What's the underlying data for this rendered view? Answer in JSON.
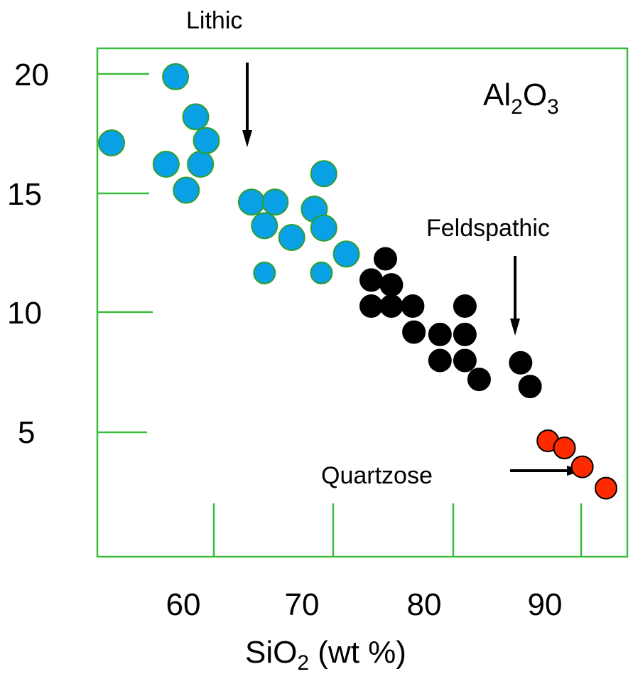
{
  "chart_data": {
    "type": "scatter",
    "title": "",
    "inset_label": {
      "main": "Al",
      "sub1": "2",
      "mid": "O",
      "sub2": "3"
    },
    "xlabel": {
      "main": "SiO",
      "sub": "2",
      "rest": " (wt %)"
    },
    "ylabel": "",
    "xlim": [
      51.3,
      96
    ],
    "ylim": [
      0,
      21.5
    ],
    "x_ticks": [
      "60",
      "70",
      "80",
      "90"
    ],
    "y_ticks": [
      "20",
      "15",
      "10",
      "5"
    ],
    "grid": false,
    "colors": {
      "frame": "#3dbb3d",
      "Lithic": "#0aa0e6",
      "Feldspathic": "#000000",
      "Quartzose": "#ff2a00"
    },
    "annotations": [
      {
        "text": "Lithic",
        "points_to": "Lithic"
      },
      {
        "text": "Feldspathic",
        "points_to": "Feldspathic"
      },
      {
        "text": "Quartzose",
        "points_to": "Quartzose"
      }
    ],
    "series": [
      {
        "name": "Lithic",
        "points": [
          [
            52.5,
            17.5
          ],
          [
            57.1,
            16.6
          ],
          [
            57.9,
            20.3
          ],
          [
            58.8,
            15.5
          ],
          [
            59.6,
            18.6
          ],
          [
            60.0,
            16.6
          ],
          [
            60.5,
            17.6
          ],
          [
            64.3,
            15.0
          ],
          [
            65.4,
            14.0
          ],
          [
            66.3,
            15.0
          ],
          [
            67.7,
            13.5
          ],
          [
            69.6,
            14.7
          ],
          [
            70.4,
            13.9
          ],
          [
            70.4,
            16.2
          ],
          [
            65.4,
            12.0
          ],
          [
            70.2,
            12.0
          ],
          [
            72.3,
            12.8
          ]
        ]
      },
      {
        "name": "Feldspathic",
        "points": [
          [
            74.4,
            11.7
          ],
          [
            74.4,
            10.6
          ],
          [
            75.6,
            12.6
          ],
          [
            76.1,
            11.5
          ],
          [
            76.1,
            10.6
          ],
          [
            77.9,
            10.6
          ],
          [
            78.0,
            9.5
          ],
          [
            80.2,
            9.4
          ],
          [
            80.2,
            8.3
          ],
          [
            82.3,
            10.6
          ],
          [
            82.3,
            9.4
          ],
          [
            82.3,
            8.3
          ],
          [
            83.5,
            7.5
          ],
          [
            87.0,
            8.2
          ],
          [
            87.8,
            7.2
          ]
        ]
      },
      {
        "name": "Quartzose",
        "points": [
          [
            89.3,
            4.9
          ],
          [
            90.7,
            4.6
          ],
          [
            92.2,
            3.8
          ],
          [
            94.2,
            2.9
          ]
        ]
      }
    ]
  }
}
